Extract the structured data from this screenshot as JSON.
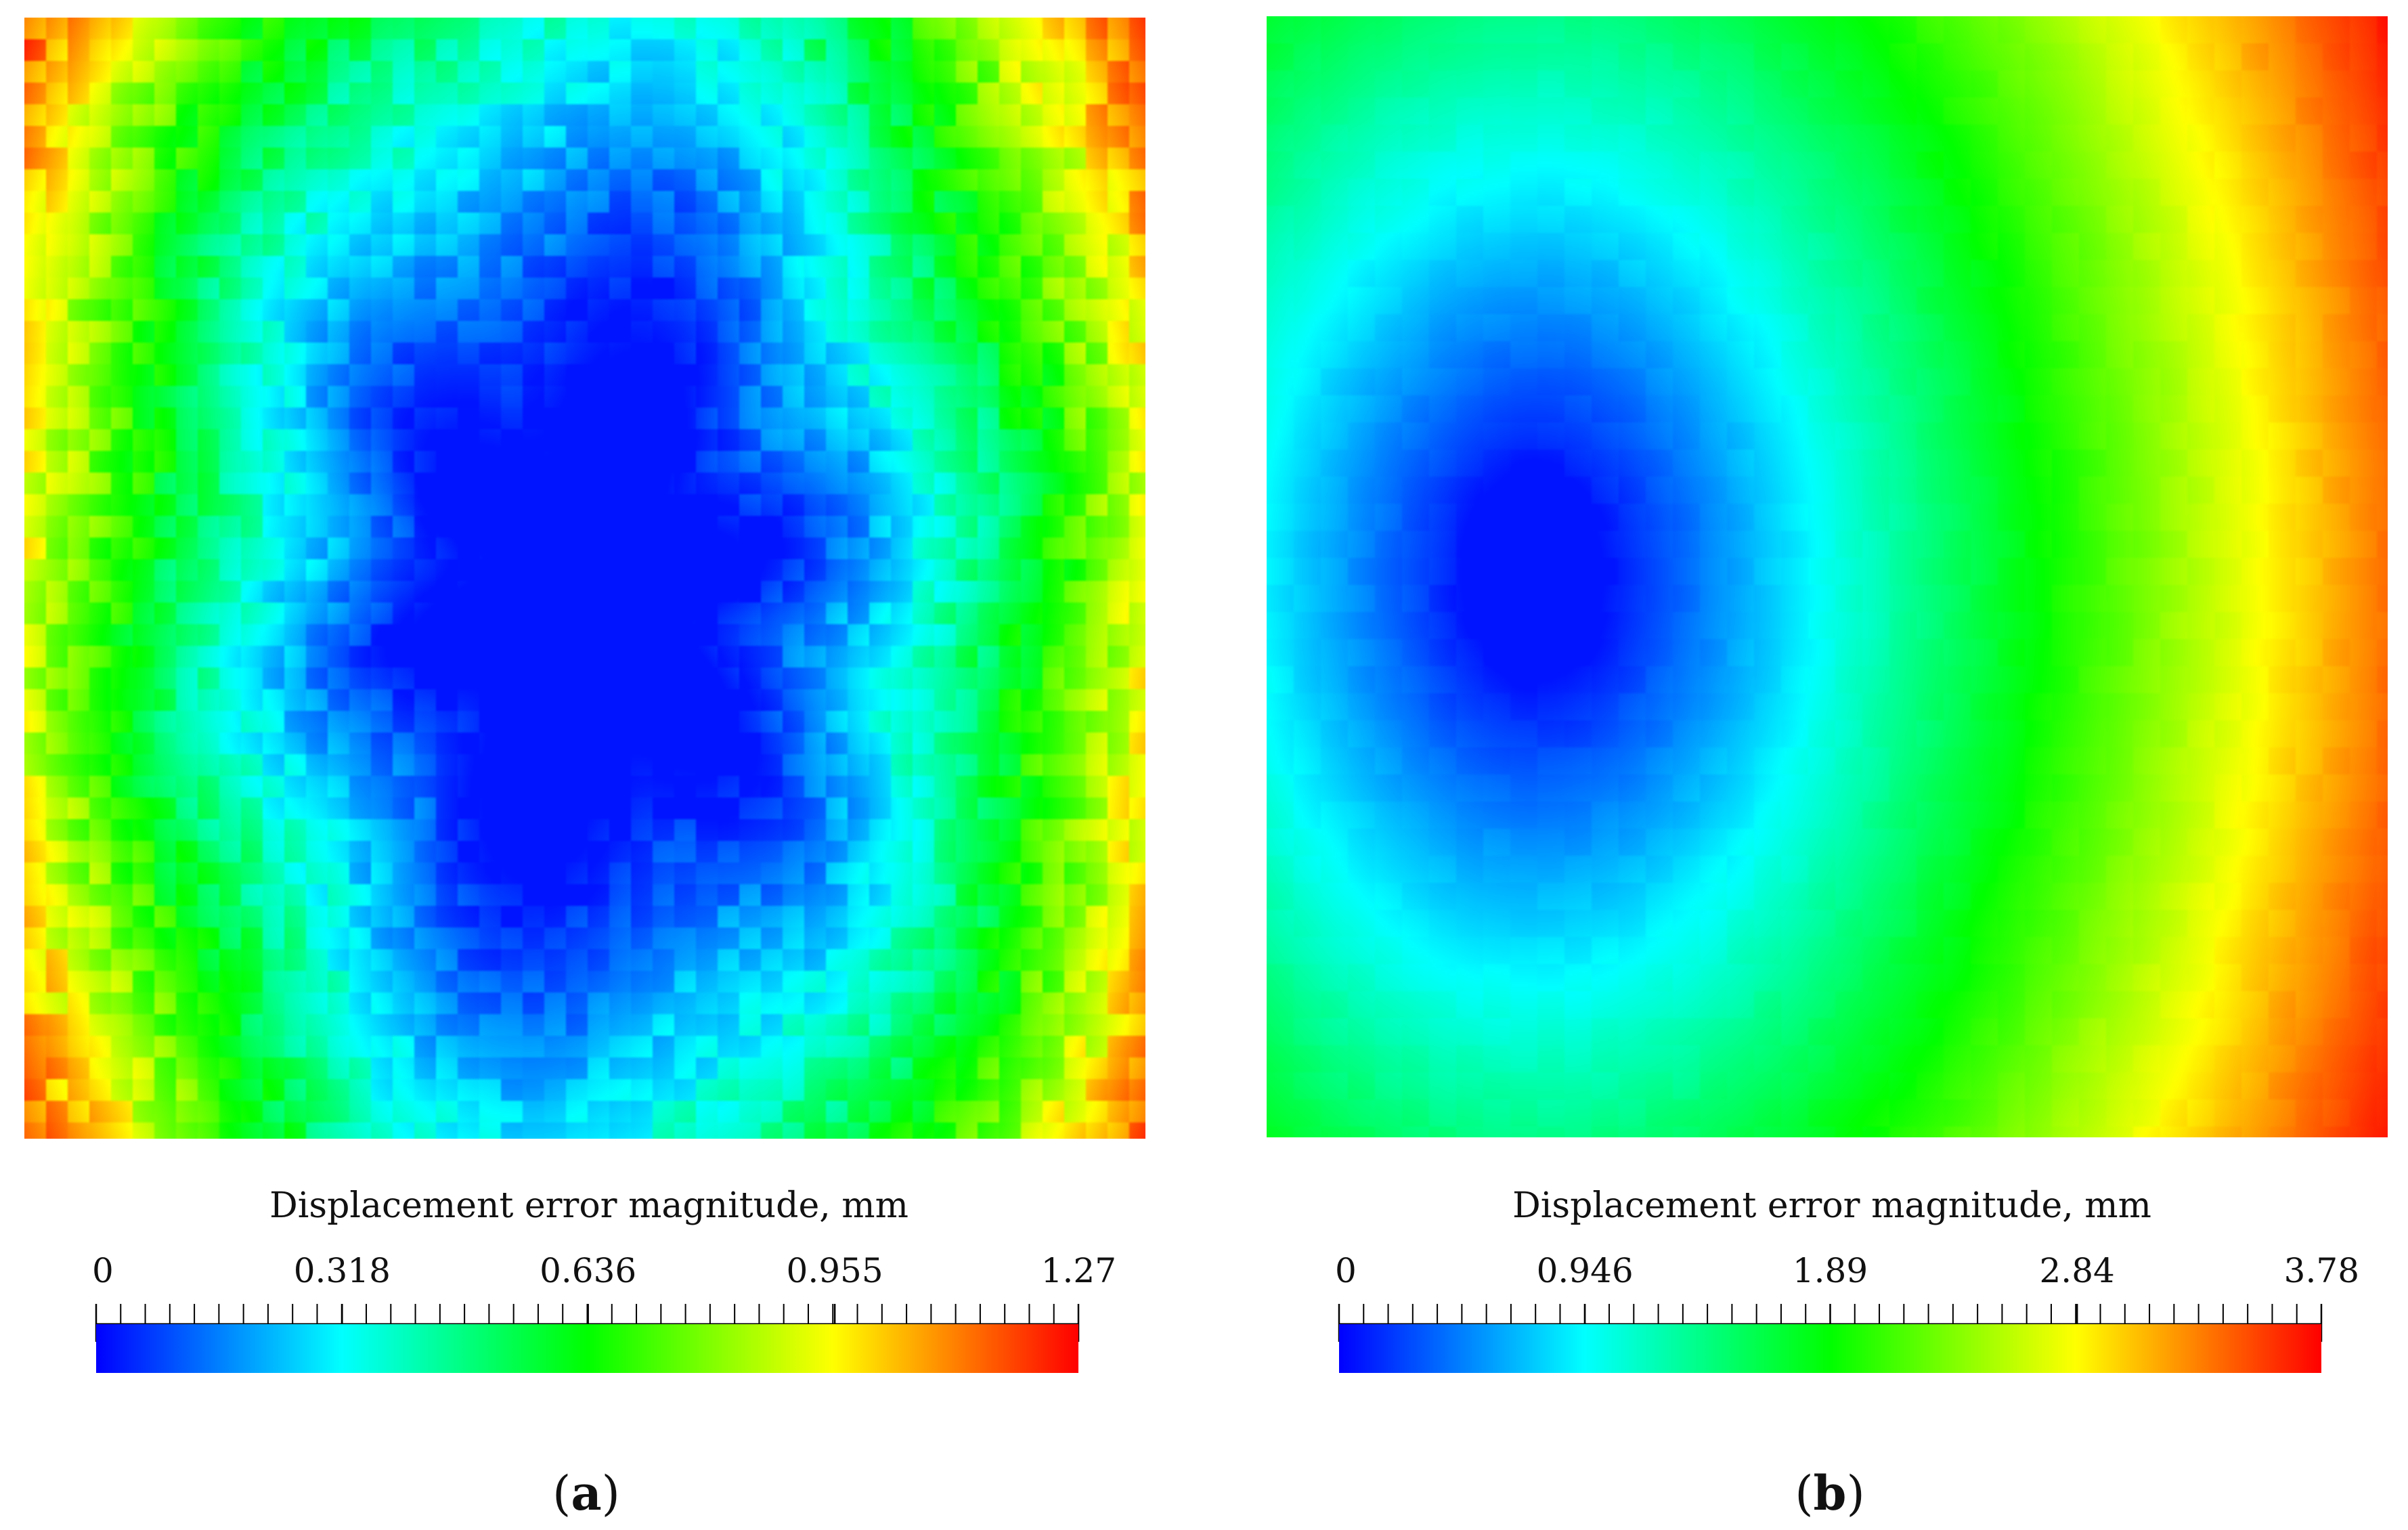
{
  "chart_data": [
    {
      "type": "heatmap",
      "panel_label": "(a)",
      "panel_letter": "a",
      "colorbar": {
        "title": "Displacement error magnitude, mm",
        "range": [
          0,
          1.27
        ],
        "tick_labels": [
          "0",
          "0.318",
          "0.636",
          "0.955",
          "1.27"
        ],
        "tick_values": [
          0,
          0.318,
          0.636,
          0.955,
          1.27
        ],
        "minor_divisions": 40
      },
      "field": {
        "description_free": true,
        "center": [
          0.5,
          0.52
        ],
        "min_value": 0,
        "max_value": 1.27,
        "noisy": true
      }
    },
    {
      "type": "heatmap",
      "panel_label": "(b)",
      "panel_letter": "b",
      "colorbar": {
        "title": "Displacement error magnitude, mm",
        "range": [
          0,
          3.78
        ],
        "tick_labels": [
          "0",
          "0.946",
          "1.89",
          "2.84",
          "3.78"
        ],
        "tick_values": [
          0,
          0.946,
          1.89,
          2.84,
          3.78
        ],
        "minor_divisions": 40
      },
      "field": {
        "description_free": true,
        "center": [
          0.24,
          0.5
        ],
        "min_value": 0,
        "max_value": 3.78,
        "noisy": false
      }
    }
  ],
  "colormap": [
    "#0000ff",
    "#00ffff",
    "#00ff00",
    "#ffff00",
    "#ff0000"
  ]
}
